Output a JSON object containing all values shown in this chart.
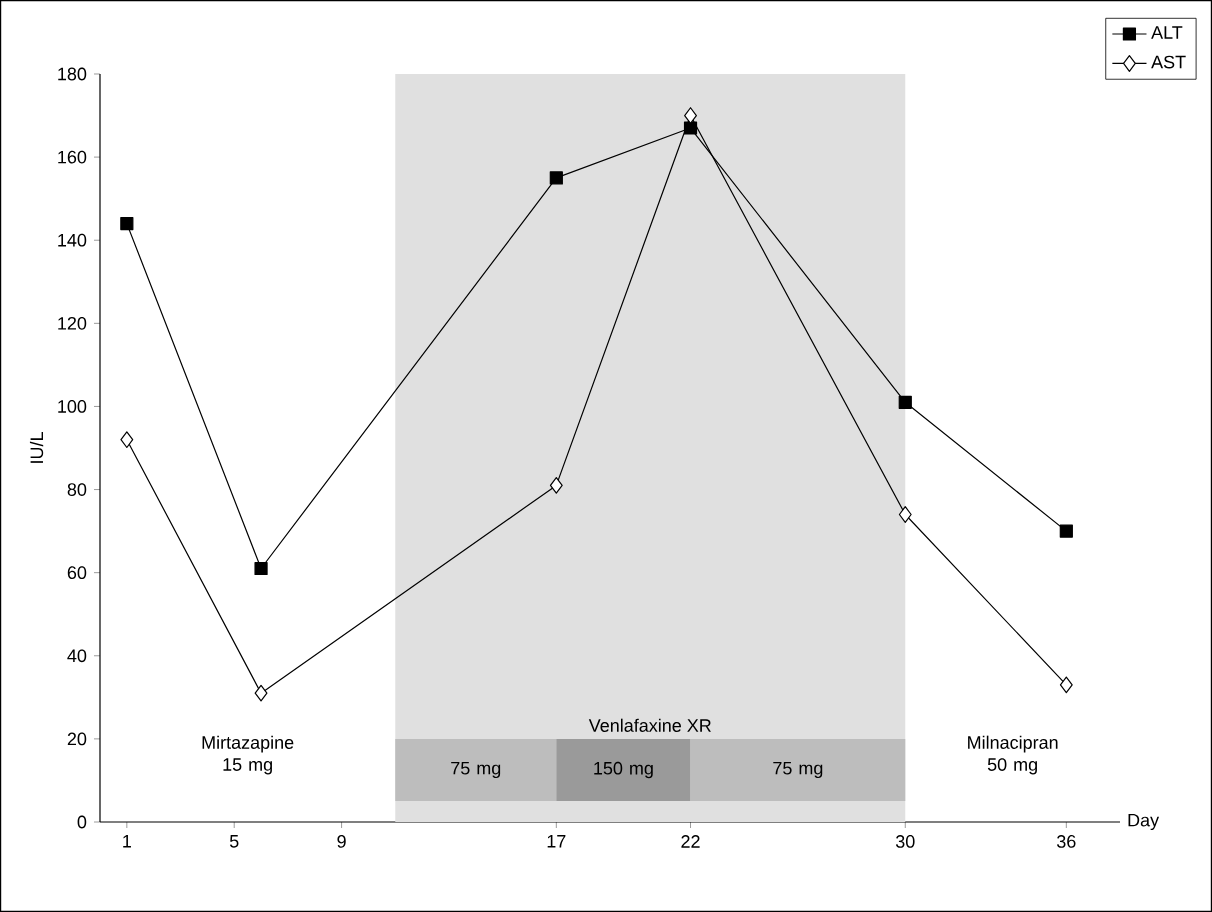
{
  "chart_data": {
    "type": "line",
    "xlabel": "Day",
    "ylabel": "IU/L",
    "x": [
      1,
      6,
      17,
      22,
      30,
      36
    ],
    "series": [
      {
        "name": "ALT",
        "color": "#000000",
        "marker": "square",
        "values": [
          144,
          61,
          155,
          167,
          101,
          70
        ]
      },
      {
        "name": "AST",
        "color": "#000000",
        "marker": "diamond",
        "values": [
          92,
          31,
          81,
          170,
          74,
          33
        ]
      }
    ],
    "xlim": [
      0,
      38
    ],
    "ylim": [
      0,
      180
    ],
    "xticks": [
      1,
      5,
      9,
      17,
      22,
      30,
      36
    ],
    "yticks": [
      0,
      20,
      40,
      60,
      80,
      100,
      120,
      140,
      160,
      180
    ],
    "bands": [
      {
        "axis": "x",
        "from": 11,
        "to": 30,
        "label": "Venlafaxine XR",
        "color": "#e0e0e0"
      },
      {
        "axis": "x",
        "from": 11,
        "to": 17,
        "label": "75 mg",
        "color": "#bdbdbd"
      },
      {
        "axis": "x",
        "from": 17,
        "to": 22,
        "label": "150 mg",
        "color": "#9a9a9a"
      },
      {
        "axis": "x",
        "from": 22,
        "to": 30,
        "label": "75 mg",
        "color": "#bdbdbd"
      }
    ],
    "annotations": [
      "Mirtazapine 15 mg",
      "Milnacipran 50 mg"
    ],
    "legend": "top right",
    "grid": false
  }
}
